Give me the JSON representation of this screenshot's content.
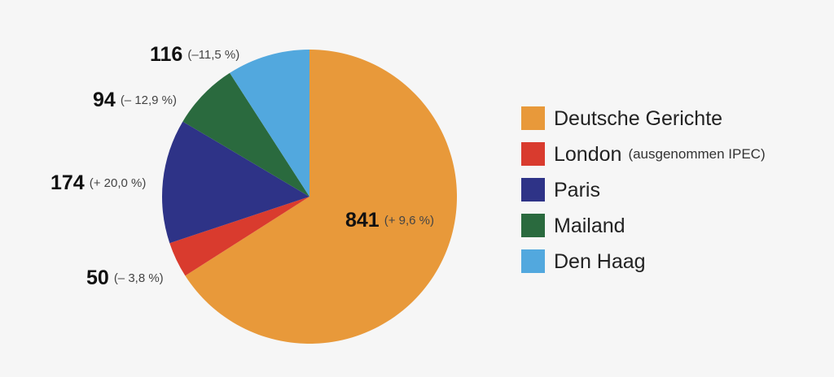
{
  "chart_data": {
    "type": "pie",
    "categories": [
      "Deutsche  Gerichte",
      "London",
      "Paris",
      "Mailand",
      "Den Haag"
    ],
    "values": [
      841,
      50,
      174,
      94,
      116
    ],
    "changes": [
      "(+ 9,6 %)",
      "(– 3,8 %)",
      "(+ 20,0 %)",
      "(– 12,9 %)",
      "(–11,5 %)"
    ],
    "colors": [
      "#e8993a",
      "#d93b2e",
      "#2e3387",
      "#2a6a3e",
      "#52a8de"
    ],
    "annotation": "(ausgenommen IPEC)",
    "start_angle": 0,
    "direction": "clockwise",
    "legend": "right"
  }
}
